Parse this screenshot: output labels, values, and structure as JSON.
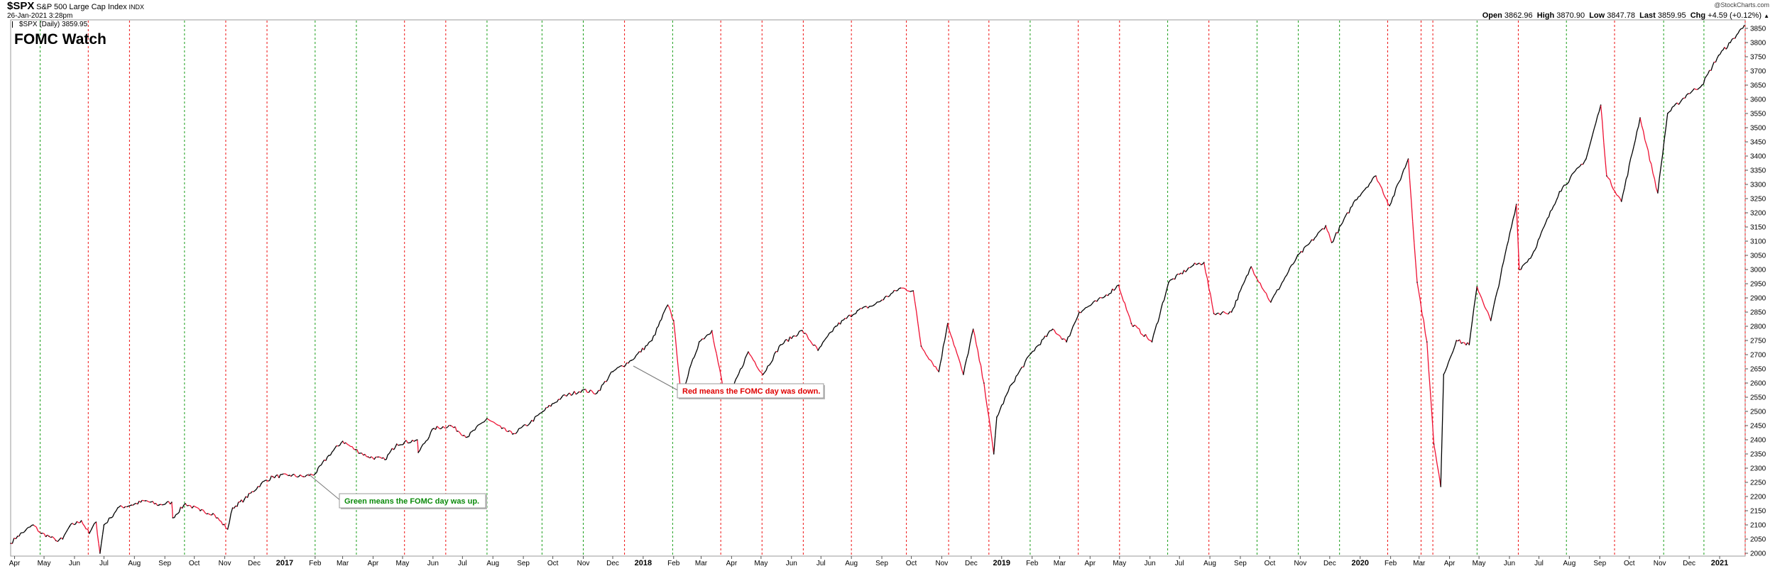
{
  "header": {
    "symbol": "$SPX",
    "name": "S&P 500 Large Cap Index",
    "exchange": "INDX",
    "datetime": "26-Jan-2021 3:28pm",
    "series_label": "$SPX (Daily) 3859.95",
    "watermark": "@StockCharts.com",
    "open_label": "Open",
    "open_value": "3862.96",
    "high_label": "High",
    "high_value": "3870.90",
    "low_label": "Low",
    "low_value": "3847.78",
    "last_label": "Last",
    "last_value": "3859.95",
    "chg_label": "Chg",
    "chg_value": "+4.59 (+0.12%)",
    "chg_icon": "triangle-up-icon"
  },
  "overlay_title": "FOMC Watch",
  "annotations": {
    "green": "Green means the FOMC day was up.",
    "red": "Red means the FOMC day was down."
  },
  "colors": {
    "up": "#000000",
    "down": "#ee1133",
    "fomc_up": "#1a9e1a",
    "fomc_down": "#ee1111",
    "title": "#1010d0",
    "annotation_green": "#0a8a0a",
    "annotation_red": "#e00000"
  },
  "chart_data": {
    "type": "line",
    "ylim": [
      1990,
      3880
    ],
    "y_ticks": [
      2000,
      2050,
      2100,
      2150,
      2200,
      2250,
      2300,
      2350,
      2400,
      2450,
      2500,
      2550,
      2600,
      2650,
      2700,
      2750,
      2800,
      2850,
      2900,
      2950,
      3000,
      3050,
      3100,
      3150,
      3200,
      3250,
      3300,
      3350,
      3400,
      3450,
      3500,
      3550,
      3600,
      3650,
      3700,
      3750,
      3800,
      3850
    ],
    "x_range": [
      "2016-03-28",
      "2021-01-27"
    ],
    "x_ticks": [
      {
        "date": "2016-04-01",
        "label": "Apr",
        "major": false
      },
      {
        "date": "2016-05-01",
        "label": "May",
        "major": false
      },
      {
        "date": "2016-06-01",
        "label": "Jun",
        "major": false
      },
      {
        "date": "2016-07-01",
        "label": "Jul",
        "major": false
      },
      {
        "date": "2016-08-01",
        "label": "Aug",
        "major": false
      },
      {
        "date": "2016-09-01",
        "label": "Sep",
        "major": false
      },
      {
        "date": "2016-10-01",
        "label": "Oct",
        "major": false
      },
      {
        "date": "2016-11-01",
        "label": "Nov",
        "major": false
      },
      {
        "date": "2016-12-01",
        "label": "Dec",
        "major": false
      },
      {
        "date": "2017-01-01",
        "label": "2017",
        "major": true
      },
      {
        "date": "2017-02-01",
        "label": "Feb",
        "major": false
      },
      {
        "date": "2017-03-01",
        "label": "Mar",
        "major": false
      },
      {
        "date": "2017-04-01",
        "label": "Apr",
        "major": false
      },
      {
        "date": "2017-05-01",
        "label": "May",
        "major": false
      },
      {
        "date": "2017-06-01",
        "label": "Jun",
        "major": false
      },
      {
        "date": "2017-07-01",
        "label": "Jul",
        "major": false
      },
      {
        "date": "2017-08-01",
        "label": "Aug",
        "major": false
      },
      {
        "date": "2017-09-01",
        "label": "Sep",
        "major": false
      },
      {
        "date": "2017-10-01",
        "label": "Oct",
        "major": false
      },
      {
        "date": "2017-11-01",
        "label": "Nov",
        "major": false
      },
      {
        "date": "2017-12-01",
        "label": "Dec",
        "major": false
      },
      {
        "date": "2018-01-01",
        "label": "2018",
        "major": true
      },
      {
        "date": "2018-02-01",
        "label": "Feb",
        "major": false
      },
      {
        "date": "2018-03-01",
        "label": "Mar",
        "major": false
      },
      {
        "date": "2018-04-01",
        "label": "Apr",
        "major": false
      },
      {
        "date": "2018-05-01",
        "label": "May",
        "major": false
      },
      {
        "date": "2018-06-01",
        "label": "Jun",
        "major": false
      },
      {
        "date": "2018-07-01",
        "label": "Jul",
        "major": false
      },
      {
        "date": "2018-08-01",
        "label": "Aug",
        "major": false
      },
      {
        "date": "2018-09-01",
        "label": "Sep",
        "major": false
      },
      {
        "date": "2018-10-01",
        "label": "Oct",
        "major": false
      },
      {
        "date": "2018-11-01",
        "label": "Nov",
        "major": false
      },
      {
        "date": "2018-12-01",
        "label": "Dec",
        "major": false
      },
      {
        "date": "2019-01-01",
        "label": "2019",
        "major": true
      },
      {
        "date": "2019-02-01",
        "label": "Feb",
        "major": false
      },
      {
        "date": "2019-03-01",
        "label": "Mar",
        "major": false
      },
      {
        "date": "2019-04-01",
        "label": "Apr",
        "major": false
      },
      {
        "date": "2019-05-01",
        "label": "May",
        "major": false
      },
      {
        "date": "2019-06-01",
        "label": "Jun",
        "major": false
      },
      {
        "date": "2019-07-01",
        "label": "Jul",
        "major": false
      },
      {
        "date": "2019-08-01",
        "label": "Aug",
        "major": false
      },
      {
        "date": "2019-09-01",
        "label": "Sep",
        "major": false
      },
      {
        "date": "2019-10-01",
        "label": "Oct",
        "major": false
      },
      {
        "date": "2019-11-01",
        "label": "Nov",
        "major": false
      },
      {
        "date": "2019-12-01",
        "label": "Dec",
        "major": false
      },
      {
        "date": "2020-01-01",
        "label": "2020",
        "major": true
      },
      {
        "date": "2020-02-01",
        "label": "Feb",
        "major": false
      },
      {
        "date": "2020-03-01",
        "label": "Mar",
        "major": false
      },
      {
        "date": "2020-04-01",
        "label": "Apr",
        "major": false
      },
      {
        "date": "2020-05-01",
        "label": "May",
        "major": false
      },
      {
        "date": "2020-06-01",
        "label": "Jun",
        "major": false
      },
      {
        "date": "2020-07-01",
        "label": "Jul",
        "major": false
      },
      {
        "date": "2020-08-01",
        "label": "Aug",
        "major": false
      },
      {
        "date": "2020-09-01",
        "label": "Sep",
        "major": false
      },
      {
        "date": "2020-10-01",
        "label": "Oct",
        "major": false
      },
      {
        "date": "2020-11-01",
        "label": "Nov",
        "major": false
      },
      {
        "date": "2020-12-01",
        "label": "Dec",
        "major": false
      },
      {
        "date": "2021-01-01",
        "label": "2021",
        "major": true
      }
    ],
    "fomc_days": [
      {
        "date": "2016-04-27",
        "result": "up"
      },
      {
        "date": "2016-06-15",
        "result": "down"
      },
      {
        "date": "2016-07-27",
        "result": "down"
      },
      {
        "date": "2016-09-21",
        "result": "up"
      },
      {
        "date": "2016-11-02",
        "result": "down"
      },
      {
        "date": "2016-12-14",
        "result": "down"
      },
      {
        "date": "2017-02-01",
        "result": "up"
      },
      {
        "date": "2017-03-15",
        "result": "up"
      },
      {
        "date": "2017-05-03",
        "result": "down"
      },
      {
        "date": "2017-06-14",
        "result": "down"
      },
      {
        "date": "2017-07-26",
        "result": "up"
      },
      {
        "date": "2017-09-20",
        "result": "up"
      },
      {
        "date": "2017-11-01",
        "result": "up"
      },
      {
        "date": "2017-12-13",
        "result": "down"
      },
      {
        "date": "2018-01-31",
        "result": "up"
      },
      {
        "date": "2018-03-21",
        "result": "down"
      },
      {
        "date": "2018-05-02",
        "result": "down"
      },
      {
        "date": "2018-06-13",
        "result": "down"
      },
      {
        "date": "2018-08-01",
        "result": "down"
      },
      {
        "date": "2018-09-26",
        "result": "down"
      },
      {
        "date": "2018-11-08",
        "result": "down"
      },
      {
        "date": "2018-12-19",
        "result": "down"
      },
      {
        "date": "2019-01-30",
        "result": "up"
      },
      {
        "date": "2019-03-20",
        "result": "down"
      },
      {
        "date": "2019-05-01",
        "result": "down"
      },
      {
        "date": "2019-06-19",
        "result": "up"
      },
      {
        "date": "2019-07-31",
        "result": "down"
      },
      {
        "date": "2019-09-18",
        "result": "up"
      },
      {
        "date": "2019-10-30",
        "result": "up"
      },
      {
        "date": "2019-12-11",
        "result": "up"
      },
      {
        "date": "2020-01-29",
        "result": "down"
      },
      {
        "date": "2020-03-03",
        "result": "down"
      },
      {
        "date": "2020-03-15",
        "result": "down"
      },
      {
        "date": "2020-04-29",
        "result": "up"
      },
      {
        "date": "2020-06-10",
        "result": "down"
      },
      {
        "date": "2020-07-29",
        "result": "up"
      },
      {
        "date": "2020-09-16",
        "result": "down"
      },
      {
        "date": "2020-11-05",
        "result": "up"
      },
      {
        "date": "2020-12-16",
        "result": "up"
      },
      {
        "date": "2021-01-27",
        "result": "down"
      }
    ],
    "series": [
      {
        "name": "$SPX (Daily)",
        "points": [
          [
            "2016-03-28",
            2035
          ],
          [
            "2016-04-04",
            2060
          ],
          [
            "2016-04-12",
            2080
          ],
          [
            "2016-04-20",
            2100
          ],
          [
            "2016-04-28",
            2070
          ],
          [
            "2016-05-06",
            2060
          ],
          [
            "2016-05-13",
            2045
          ],
          [
            "2016-05-20",
            2050
          ],
          [
            "2016-05-27",
            2095
          ],
          [
            "2016-06-08",
            2115
          ],
          [
            "2016-06-16",
            2070
          ],
          [
            "2016-06-23",
            2110
          ],
          [
            "2016-06-27",
            2000
          ],
          [
            "2016-07-01",
            2100
          ],
          [
            "2016-07-08",
            2125
          ],
          [
            "2016-07-15",
            2160
          ],
          [
            "2016-07-29",
            2170
          ],
          [
            "2016-08-12",
            2185
          ],
          [
            "2016-08-26",
            2170
          ],
          [
            "2016-09-08",
            2180
          ],
          [
            "2016-09-09",
            2125
          ],
          [
            "2016-09-22",
            2175
          ],
          [
            "2016-10-07",
            2150
          ],
          [
            "2016-10-20",
            2140
          ],
          [
            "2016-11-04",
            2085
          ],
          [
            "2016-11-09",
            2160
          ],
          [
            "2016-11-21",
            2190
          ],
          [
            "2016-12-08",
            2245
          ],
          [
            "2016-12-20",
            2270
          ],
          [
            "2017-01-06",
            2275
          ],
          [
            "2017-01-20",
            2270
          ],
          [
            "2017-02-01",
            2280
          ],
          [
            "2017-02-15",
            2345
          ],
          [
            "2017-03-01",
            2395
          ],
          [
            "2017-03-14",
            2365
          ],
          [
            "2017-03-27",
            2340
          ],
          [
            "2017-04-13",
            2330
          ],
          [
            "2017-04-25",
            2385
          ],
          [
            "2017-05-16",
            2400
          ],
          [
            "2017-05-17",
            2355
          ],
          [
            "2017-06-02",
            2440
          ],
          [
            "2017-06-19",
            2450
          ],
          [
            "2017-07-06",
            2410
          ],
          [
            "2017-07-26",
            2475
          ],
          [
            "2017-08-10",
            2440
          ],
          [
            "2017-08-21",
            2420
          ],
          [
            "2017-09-08",
            2460
          ],
          [
            "2017-09-21",
            2500
          ],
          [
            "2017-10-10",
            2550
          ],
          [
            "2017-10-31",
            2575
          ],
          [
            "2017-11-15",
            2565
          ],
          [
            "2017-12-01",
            2640
          ],
          [
            "2017-12-20",
            2680
          ],
          [
            "2018-01-10",
            2750
          ],
          [
            "2018-01-26",
            2875
          ],
          [
            "2018-02-01",
            2820
          ],
          [
            "2018-02-08",
            2580
          ],
          [
            "2018-02-09",
            2560
          ],
          [
            "2018-02-27",
            2745
          ],
          [
            "2018-03-12",
            2785
          ],
          [
            "2018-03-23",
            2590
          ],
          [
            "2018-04-02",
            2580
          ],
          [
            "2018-04-18",
            2710
          ],
          [
            "2018-05-03",
            2630
          ],
          [
            "2018-05-21",
            2735
          ],
          [
            "2018-06-12",
            2785
          ],
          [
            "2018-06-28",
            2715
          ],
          [
            "2018-07-16",
            2800
          ],
          [
            "2018-08-07",
            2855
          ],
          [
            "2018-08-24",
            2875
          ],
          [
            "2018-09-20",
            2935
          ],
          [
            "2018-10-03",
            2925
          ],
          [
            "2018-10-11",
            2730
          ],
          [
            "2018-10-29",
            2640
          ],
          [
            "2018-11-07",
            2810
          ],
          [
            "2018-11-23",
            2630
          ],
          [
            "2018-12-03",
            2790
          ],
          [
            "2018-12-14",
            2600
          ],
          [
            "2018-12-24",
            2350
          ],
          [
            "2018-12-27",
            2480
          ],
          [
            "2019-01-11",
            2595
          ],
          [
            "2019-01-31",
            2705
          ],
          [
            "2019-02-22",
            2790
          ],
          [
            "2019-03-08",
            2745
          ],
          [
            "2019-03-21",
            2850
          ],
          [
            "2019-04-16",
            2905
          ],
          [
            "2019-04-30",
            2945
          ],
          [
            "2019-05-13",
            2810
          ],
          [
            "2019-06-03",
            2745
          ],
          [
            "2019-06-20",
            2955
          ],
          [
            "2019-07-15",
            3015
          ],
          [
            "2019-07-26",
            3025
          ],
          [
            "2019-08-05",
            2845
          ],
          [
            "2019-08-23",
            2850
          ],
          [
            "2019-09-12",
            3010
          ],
          [
            "2019-10-02",
            2885
          ],
          [
            "2019-10-28",
            3040
          ],
          [
            "2019-11-27",
            3155
          ],
          [
            "2019-12-03",
            3095
          ],
          [
            "2019-12-27",
            3245
          ],
          [
            "2020-01-17",
            3330
          ],
          [
            "2020-01-31",
            3225
          ],
          [
            "2020-02-19",
            3390
          ],
          [
            "2020-02-28",
            2955
          ],
          [
            "2020-03-09",
            2745
          ],
          [
            "2020-03-16",
            2385
          ],
          [
            "2020-03-23",
            2235
          ],
          [
            "2020-03-26",
            2630
          ],
          [
            "2020-04-08",
            2750
          ],
          [
            "2020-04-21",
            2735
          ],
          [
            "2020-04-29",
            2940
          ],
          [
            "2020-05-13",
            2820
          ],
          [
            "2020-06-08",
            3230
          ],
          [
            "2020-06-11",
            3000
          ],
          [
            "2020-06-24",
            3050
          ],
          [
            "2020-07-22",
            3275
          ],
          [
            "2020-08-18",
            3390
          ],
          [
            "2020-09-02",
            3580
          ],
          [
            "2020-09-08",
            3330
          ],
          [
            "2020-09-23",
            3240
          ],
          [
            "2020-10-12",
            3535
          ],
          [
            "2020-10-30",
            3270
          ],
          [
            "2020-11-09",
            3550
          ],
          [
            "2020-11-30",
            3620
          ],
          [
            "2020-12-14",
            3650
          ],
          [
            "2020-12-31",
            3755
          ],
          [
            "2021-01-12",
            3800
          ],
          [
            "2021-01-26",
            3860
          ]
        ]
      }
    ]
  }
}
